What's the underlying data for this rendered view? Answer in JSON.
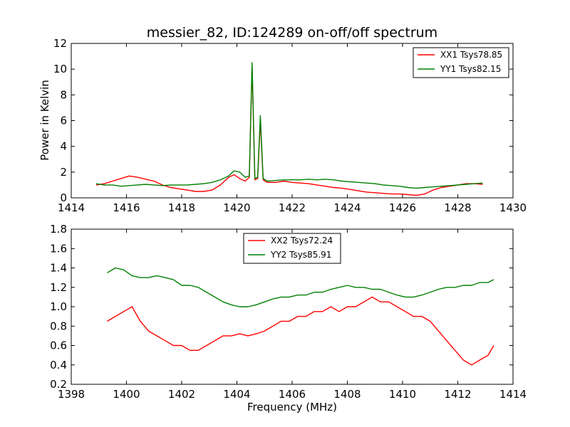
{
  "chart_data": [
    {
      "type": "line",
      "title": "messier_82, ID:124289 on-off/off spectrum",
      "xlabel": "",
      "ylabel": "Power in Kelvin",
      "xlim": [
        1414,
        1430
      ],
      "ylim": [
        0,
        12
      ],
      "xticks": [
        "1414",
        "1416",
        "1418",
        "1420",
        "1422",
        "1424",
        "1426",
        "1428",
        "1430"
      ],
      "yticks": [
        "0",
        "2",
        "4",
        "6",
        "8",
        "10",
        "12"
      ],
      "legend": "top-right",
      "grid": false,
      "series": [
        {
          "name": "XX1 Tsys78.85",
          "color": "#ff0000",
          "x": [
            1414.9,
            1415.2,
            1415.5,
            1415.8,
            1416.1,
            1416.4,
            1416.7,
            1417.0,
            1417.3,
            1417.6,
            1417.9,
            1418.2,
            1418.5,
            1418.8,
            1419.1,
            1419.4,
            1419.7,
            1419.9,
            1420.1,
            1420.3,
            1420.45,
            1420.55,
            1420.65,
            1420.75,
            1420.85,
            1420.95,
            1421.1,
            1421.4,
            1421.7,
            1422.0,
            1422.3,
            1422.6,
            1422.9,
            1423.2,
            1423.5,
            1423.8,
            1424.1,
            1424.4,
            1424.7,
            1425.0,
            1425.3,
            1425.6,
            1425.9,
            1426.2,
            1426.5,
            1426.8,
            1427.1,
            1427.4,
            1427.7,
            1428.0,
            1428.3,
            1428.6,
            1428.9
          ],
          "y": [
            1.0,
            1.1,
            1.3,
            1.5,
            1.7,
            1.6,
            1.45,
            1.3,
            1.0,
            0.8,
            0.7,
            0.6,
            0.5,
            0.5,
            0.6,
            1.0,
            1.6,
            1.8,
            1.5,
            1.3,
            1.6,
            10.2,
            1.4,
            1.5,
            6.0,
            1.4,
            1.2,
            1.2,
            1.3,
            1.2,
            1.15,
            1.1,
            1.0,
            0.9,
            0.8,
            0.75,
            0.65,
            0.55,
            0.45,
            0.4,
            0.35,
            0.3,
            0.3,
            0.25,
            0.2,
            0.3,
            0.6,
            0.8,
            0.9,
            1.0,
            1.1,
            1.1,
            1.05
          ]
        },
        {
          "name": "YY1 Tsys82.15",
          "color": "#008000",
          "x": [
            1414.9,
            1415.2,
            1415.5,
            1415.8,
            1416.1,
            1416.4,
            1416.7,
            1417.0,
            1417.3,
            1417.6,
            1417.9,
            1418.2,
            1418.5,
            1418.8,
            1419.1,
            1419.4,
            1419.7,
            1419.9,
            1420.1,
            1420.3,
            1420.45,
            1420.55,
            1420.65,
            1420.75,
            1420.85,
            1420.95,
            1421.1,
            1421.4,
            1421.7,
            1422.0,
            1422.3,
            1422.6,
            1422.9,
            1423.2,
            1423.5,
            1423.8,
            1424.1,
            1424.4,
            1424.7,
            1425.0,
            1425.3,
            1425.6,
            1425.9,
            1426.2,
            1426.5,
            1426.8,
            1427.1,
            1427.4,
            1427.7,
            1428.0,
            1428.3,
            1428.6,
            1428.9
          ],
          "y": [
            1.1,
            1.0,
            1.0,
            0.9,
            0.95,
            1.0,
            1.05,
            1.0,
            0.95,
            1.0,
            1.0,
            1.0,
            1.05,
            1.1,
            1.2,
            1.4,
            1.7,
            2.1,
            2.0,
            1.6,
            1.7,
            10.5,
            1.5,
            1.6,
            6.4,
            1.5,
            1.3,
            1.35,
            1.4,
            1.4,
            1.4,
            1.45,
            1.4,
            1.45,
            1.4,
            1.3,
            1.25,
            1.2,
            1.15,
            1.1,
            1.0,
            0.95,
            0.9,
            0.8,
            0.75,
            0.8,
            0.85,
            0.9,
            0.95,
            1.0,
            1.05,
            1.1,
            1.15
          ]
        }
      ]
    },
    {
      "type": "line",
      "title": "",
      "xlabel": "Frequency (MHz)",
      "ylabel": "",
      "xlim": [
        1398,
        1414
      ],
      "ylim": [
        0.2,
        1.8
      ],
      "xticks": [
        "1398",
        "1400",
        "1402",
        "1404",
        "1406",
        "1408",
        "1410",
        "1412",
        "1414"
      ],
      "yticks": [
        "0.2",
        "0.4",
        "0.6",
        "0.8",
        "1.0",
        "1.2",
        "1.4",
        "1.6",
        "1.8"
      ],
      "legend": "top-center",
      "grid": false,
      "series": [
        {
          "name": "XX2 Tsys72.24",
          "color": "#ff0000",
          "x": [
            1399.3,
            1399.6,
            1399.9,
            1400.2,
            1400.5,
            1400.8,
            1401.1,
            1401.4,
            1401.7,
            1402.0,
            1402.3,
            1402.6,
            1402.9,
            1403.2,
            1403.5,
            1403.8,
            1404.1,
            1404.4,
            1404.7,
            1405.0,
            1405.3,
            1405.6,
            1405.9,
            1406.2,
            1406.5,
            1406.8,
            1407.1,
            1407.4,
            1407.7,
            1408.0,
            1408.3,
            1408.6,
            1408.9,
            1409.2,
            1409.5,
            1409.8,
            1410.1,
            1410.4,
            1410.7,
            1411.0,
            1411.3,
            1411.6,
            1411.9,
            1412.2,
            1412.5,
            1412.8,
            1413.1,
            1413.3
          ],
          "y": [
            0.85,
            0.9,
            0.95,
            1.0,
            0.85,
            0.75,
            0.7,
            0.65,
            0.6,
            0.6,
            0.55,
            0.55,
            0.6,
            0.65,
            0.7,
            0.7,
            0.72,
            0.7,
            0.72,
            0.75,
            0.8,
            0.85,
            0.85,
            0.9,
            0.9,
            0.95,
            0.95,
            1.0,
            0.95,
            1.0,
            1.0,
            1.05,
            1.1,
            1.05,
            1.05,
            1.0,
            0.95,
            0.9,
            0.9,
            0.85,
            0.75,
            0.65,
            0.55,
            0.45,
            0.4,
            0.45,
            0.5,
            0.6
          ]
        },
        {
          "name": "YY2 Tsys85.91",
          "color": "#008000",
          "x": [
            1399.3,
            1399.6,
            1399.9,
            1400.2,
            1400.5,
            1400.8,
            1401.1,
            1401.4,
            1401.7,
            1402.0,
            1402.3,
            1402.6,
            1402.9,
            1403.2,
            1403.5,
            1403.8,
            1404.1,
            1404.4,
            1404.7,
            1405.0,
            1405.3,
            1405.6,
            1405.9,
            1406.2,
            1406.5,
            1406.8,
            1407.1,
            1407.4,
            1407.7,
            1408.0,
            1408.3,
            1408.6,
            1408.9,
            1409.2,
            1409.5,
            1409.8,
            1410.1,
            1410.4,
            1410.7,
            1411.0,
            1411.3,
            1411.6,
            1411.9,
            1412.2,
            1412.5,
            1412.8,
            1413.1,
            1413.3
          ],
          "y": [
            1.35,
            1.4,
            1.38,
            1.32,
            1.3,
            1.3,
            1.32,
            1.3,
            1.28,
            1.22,
            1.22,
            1.2,
            1.15,
            1.1,
            1.05,
            1.02,
            1.0,
            1.0,
            1.02,
            1.05,
            1.08,
            1.1,
            1.1,
            1.12,
            1.12,
            1.15,
            1.15,
            1.18,
            1.2,
            1.22,
            1.2,
            1.2,
            1.18,
            1.18,
            1.15,
            1.12,
            1.1,
            1.1,
            1.12,
            1.15,
            1.18,
            1.2,
            1.2,
            1.22,
            1.22,
            1.25,
            1.25,
            1.28
          ]
        }
      ]
    }
  ]
}
